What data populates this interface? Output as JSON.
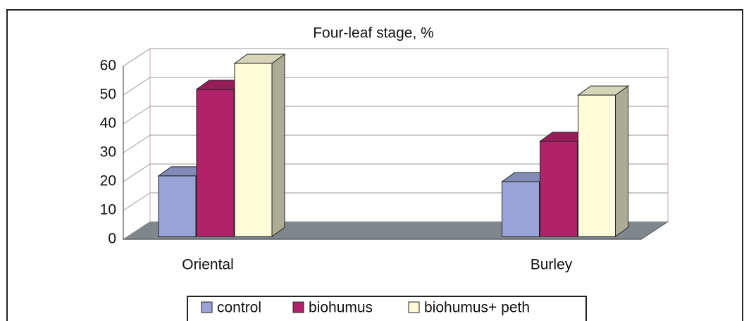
{
  "chart_data": {
    "type": "bar3d",
    "title": "Four-leaf stage,  %",
    "categories": [
      "Oriental",
      "Burley"
    ],
    "series": [
      {
        "name": "control",
        "color": "#99a3d8",
        "values": [
          21,
          19
        ]
      },
      {
        "name": "biohumus",
        "color": "#b0226a",
        "values": [
          51,
          33
        ]
      },
      {
        "name": "biohumus+ peth",
        "color": "#fdfbd8",
        "values": [
          60,
          49
        ]
      }
    ],
    "ylim": [
      0,
      60
    ],
    "yticks": [
      0,
      10,
      20,
      30,
      40,
      50,
      60
    ],
    "grid": true,
    "legend": "bottom"
  }
}
